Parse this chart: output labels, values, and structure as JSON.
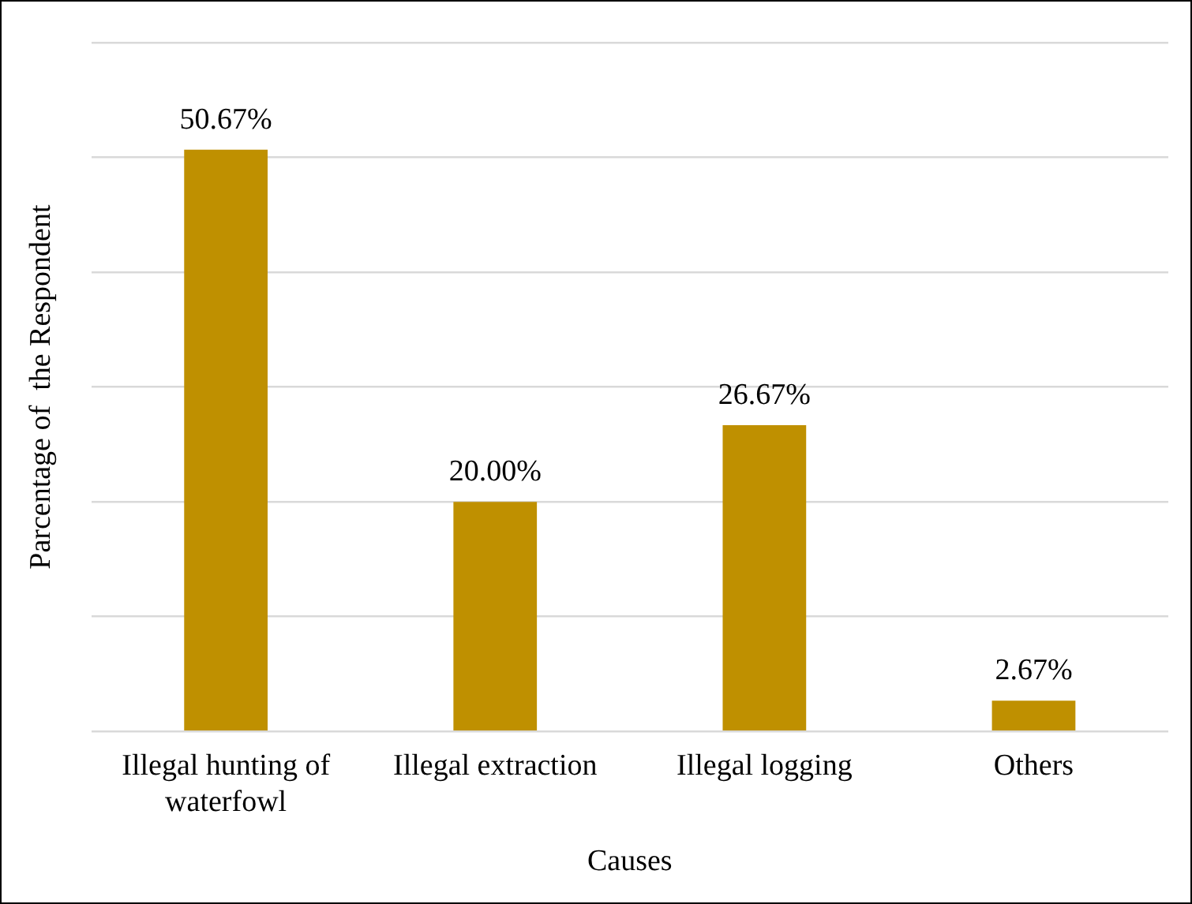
{
  "chart_data": {
    "type": "bar",
    "xlabel": "Causes",
    "ylabel": "Parcentage of  the Respondent",
    "categories": [
      "Illegal hunting of waterfowl",
      "Illegal extraction",
      "Illegal logging",
      "Others"
    ],
    "values": [
      50.67,
      20.0,
      26.67,
      2.67
    ],
    "color": "#bf9000",
    "value_labels": [
      "50.67%",
      "20.00%",
      "26.67%",
      "2.67%"
    ],
    "ylim": [
      0,
      60
    ],
    "yticks": [
      {
        "value": 0,
        "label": null
      },
      {
        "value": 10,
        "label": null
      },
      {
        "value": 20,
        "label": null
      },
      {
        "value": 30,
        "label": null
      },
      {
        "value": 40,
        "label": null
      },
      {
        "value": 50,
        "label": null
      },
      {
        "value": 60,
        "label": null
      }
    ],
    "grid": "y",
    "tick_labels": "x",
    "legend": false
  }
}
